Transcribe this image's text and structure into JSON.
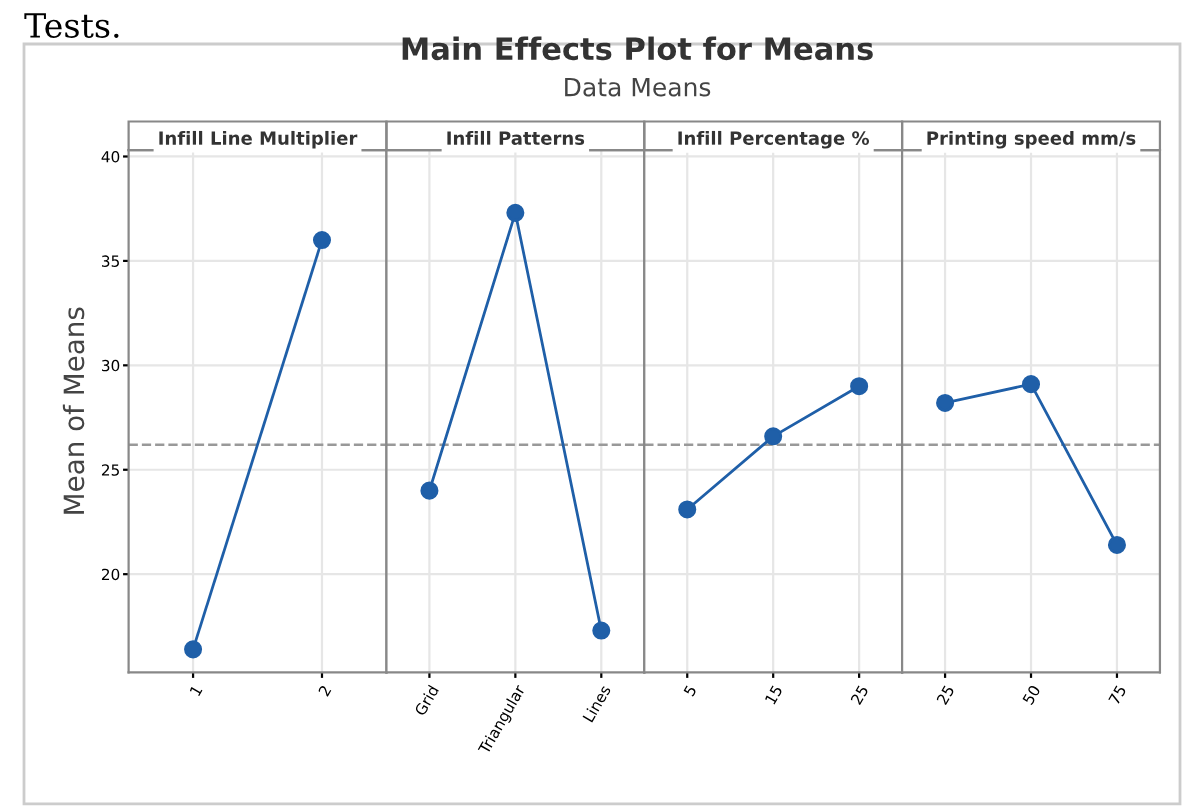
{
  "chart_data": [
    {
      "type": "line",
      "title": "Infill Line Multiplier",
      "ylabel": "Mean of Means",
      "annotations": [
        "Tests.",
        "Main Effects Plot for Means",
        "Data Means"
      ],
      "categories": [
        "1",
        "2"
      ],
      "values": [
        16.4,
        36.0
      ],
      "color": "#1f5fa8",
      "marker": "circle",
      "ylim": [
        15.3,
        40.3
      ],
      "yticks": [
        20,
        25,
        30,
        35,
        40
      ],
      "grid": true,
      "ref_lines": [
        {
          "axis": "y",
          "value": 26.2,
          "line_style": "dashed",
          "color": "#999999"
        }
      ]
    },
    {
      "type": "line",
      "title": "Infill Patterns",
      "categories": [
        "Grid",
        "Triangular",
        "Lines"
      ],
      "values": [
        24.0,
        37.3,
        17.3
      ],
      "color": "#1f5fa8",
      "marker": "circle",
      "ylim": [
        15.3,
        40.3
      ],
      "yticks": [
        20,
        25,
        30,
        35,
        40
      ],
      "grid": true,
      "tick_labels": "x",
      "ref_lines": [
        {
          "axis": "y",
          "value": 26.2,
          "line_style": "dashed",
          "color": "#999999"
        }
      ]
    },
    {
      "type": "line",
      "title": "Infill Percentage %",
      "categories": [
        "5",
        "15",
        "25"
      ],
      "values": [
        23.1,
        26.6,
        29.0
      ],
      "color": "#1f5fa8",
      "marker": "circle",
      "ylim": [
        15.3,
        40.3
      ],
      "yticks": [
        20,
        25,
        30,
        35,
        40
      ],
      "grid": true,
      "tick_labels": "x",
      "ref_lines": [
        {
          "axis": "y",
          "value": 26.2,
          "line_style": "dashed",
          "color": "#999999"
        }
      ]
    },
    {
      "type": "line",
      "title": "Printing speed mm/s",
      "categories": [
        "25",
        "50",
        "75"
      ],
      "values": [
        28.2,
        29.1,
        21.4
      ],
      "color": "#1f5fa8",
      "marker": "circle",
      "ylim": [
        15.3,
        40.3
      ],
      "yticks": [
        20,
        25,
        30,
        35,
        40
      ],
      "grid": true,
      "tick_labels": "x",
      "ref_lines": [
        {
          "axis": "y",
          "value": 26.2,
          "line_style": "dashed",
          "color": "#999999"
        }
      ]
    }
  ]
}
